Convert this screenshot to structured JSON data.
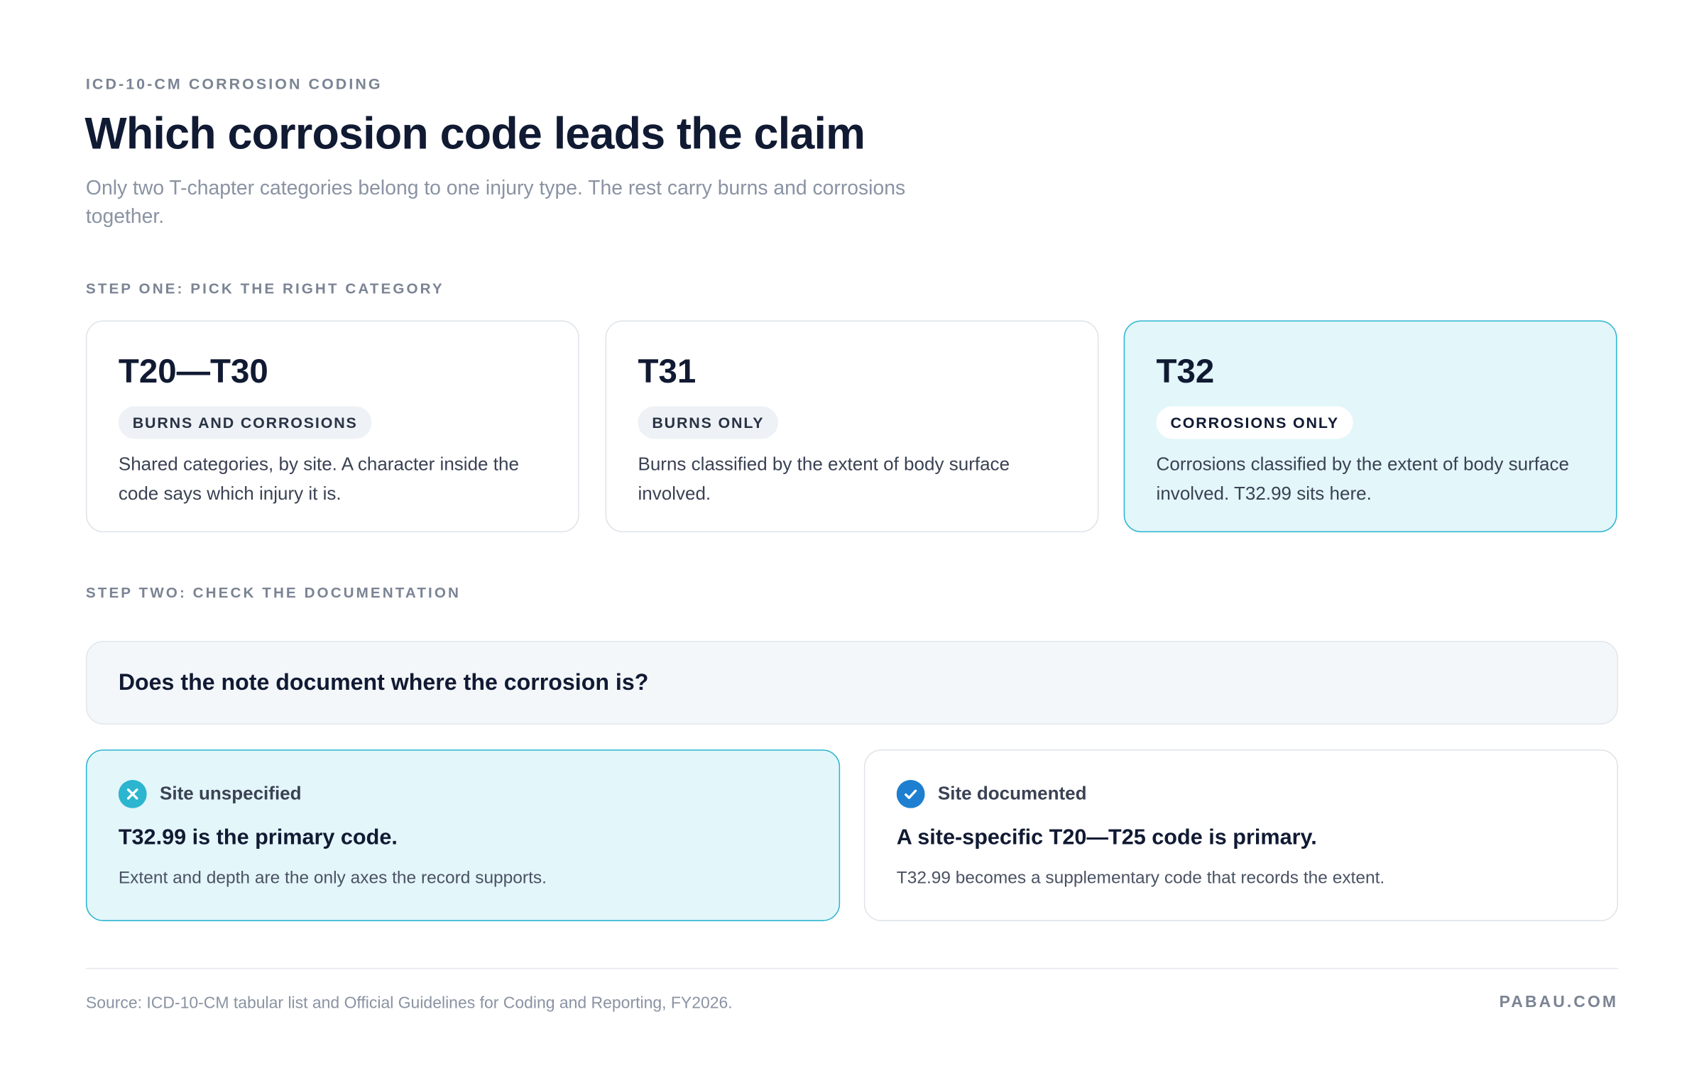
{
  "header": {
    "eyebrow": "ICD-10-CM CORROSION CODING",
    "title": "Which corrosion code leads the claim",
    "subtitle": "Only two T-chapter categories belong to one injury type. The rest carry burns and corrosions together."
  },
  "step_one": {
    "label": "STEP ONE: PICK THE RIGHT CATEGORY",
    "cards": [
      {
        "code": "T20—T30",
        "tag": "BURNS AND CORROSIONS",
        "description": "Shared categories, by site. A character inside the code says which injury it is."
      },
      {
        "code": "T31",
        "tag": "BURNS ONLY",
        "description": "Burns classified by the extent of body surface involved."
      },
      {
        "code": "T32",
        "tag": "CORROSIONS ONLY",
        "description": "Corrosions classified by the extent of body surface involved. T32.99 sits here."
      }
    ]
  },
  "step_two": {
    "label": "STEP TWO: CHECK THE DOCUMENTATION",
    "question": "Does the note document where the corrosion is?",
    "options": [
      {
        "status": "Site unspecified",
        "headline": "T32.99 is the primary code.",
        "description": "Extent and depth are the only axes the record supports."
      },
      {
        "status": "Site documented",
        "headline": "A site-specific T20—T25 code is primary.",
        "description": "T32.99 becomes a supplementary code that records the extent."
      }
    ]
  },
  "footer": {
    "source": "Source: ICD-10-CM tabular list and Official Guidelines for Coding and Reporting, FY2026.",
    "brand": "PABAU.COM"
  }
}
